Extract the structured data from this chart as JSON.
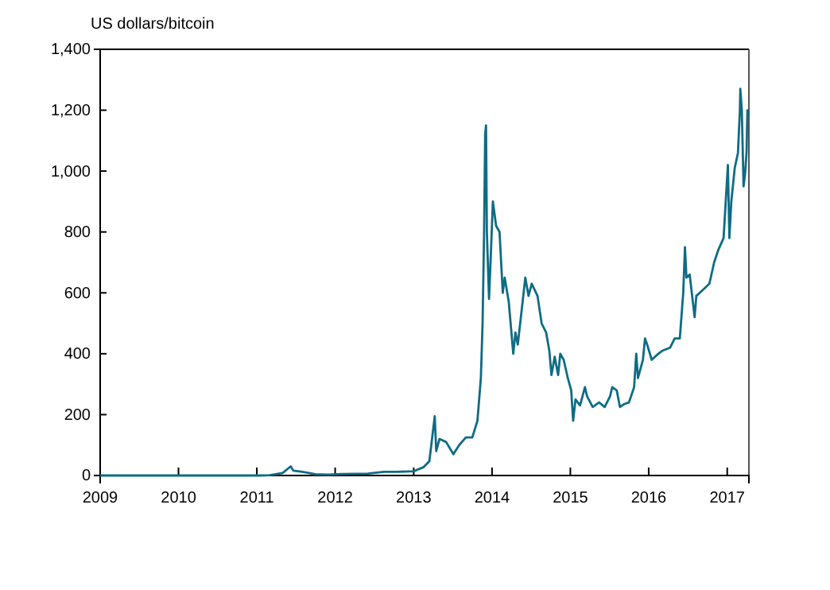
{
  "chart_data": {
    "type": "line",
    "ylabel": "US dollars/bitcoin",
    "xlim": [
      "2009-01-01",
      "2017-04-12"
    ],
    "xticks": [
      "2009",
      "2010",
      "2011",
      "2012",
      "2013",
      "2014",
      "2015",
      "2016",
      "2017"
    ],
    "ylim": [
      0,
      1400
    ],
    "yticks": [
      0,
      {
        "value": 200,
        "label": "200"
      },
      {
        "value": 400,
        "label": "400"
      },
      {
        "value": 600,
        "label": "600"
      },
      {
        "value": 800,
        "label": "800"
      },
      {
        "value": 1000,
        "label": "1,000"
      },
      {
        "value": 1200,
        "label": "1,200"
      },
      {
        "value": 1400,
        "label": "1,400"
      }
    ],
    "grid": false,
    "marker": "none",
    "line_style": "solid",
    "series": [
      {
        "color": "#0e6c85",
        "x": [
          "2009-01-01",
          "2010-07-15",
          "2010-10-01",
          "2011-01-15",
          "2011-03-01",
          "2011-05-01",
          "2011-06-08",
          "2011-06-20",
          "2011-08-01",
          "2011-10-01",
          "2011-12-01",
          "2012-02-01",
          "2012-06-01",
          "2012-08-15",
          "2012-10-15",
          "2013-01-01",
          "2013-02-15",
          "2013-03-15",
          "2013-04-09",
          "2013-04-16",
          "2013-05-01",
          "2013-06-01",
          "2013-07-05",
          "2013-08-01",
          "2013-09-01",
          "2013-10-01",
          "2013-10-25",
          "2013-11-10",
          "2013-11-18",
          "2013-11-25",
          "2013-11-30",
          "2013-12-04",
          "2013-12-08",
          "2013-12-18",
          "2013-12-25",
          "2014-01-05",
          "2014-01-20",
          "2014-02-05",
          "2014-02-20",
          "2014-03-01",
          "2014-03-20",
          "2014-04-10",
          "2014-04-20",
          "2014-05-01",
          "2014-05-25",
          "2014-06-05",
          "2014-06-20",
          "2014-07-05",
          "2014-08-01",
          "2014-08-20",
          "2014-09-10",
          "2014-09-25",
          "2014-10-05",
          "2014-10-20",
          "2014-11-05",
          "2014-11-15",
          "2014-12-01",
          "2014-12-20",
          "2015-01-05",
          "2015-01-14",
          "2015-01-25",
          "2015-02-15",
          "2015-03-10",
          "2015-03-20",
          "2015-04-15",
          "2015-05-15",
          "2015-06-10",
          "2015-07-05",
          "2015-07-15",
          "2015-08-05",
          "2015-08-20",
          "2015-09-10",
          "2015-10-01",
          "2015-10-25",
          "2015-11-04",
          "2015-11-12",
          "2015-12-05",
          "2015-12-15",
          "2015-12-25",
          "2016-01-15",
          "2016-02-15",
          "2016-03-05",
          "2016-04-10",
          "2016-05-01",
          "2016-05-25",
          "2016-06-10",
          "2016-06-18",
          "2016-06-25",
          "2016-07-10",
          "2016-08-02",
          "2016-08-10",
          "2016-09-10",
          "2016-10-10",
          "2016-11-01",
          "2016-11-20",
          "2016-12-15",
          "2016-12-25",
          "2017-01-04",
          "2017-01-11",
          "2017-01-20",
          "2017-02-05",
          "2017-02-20",
          "2017-03-01",
          "2017-03-03",
          "2017-03-10",
          "2017-03-18",
          "2017-03-25",
          "2017-04-01",
          "2017-04-05",
          "2017-04-10"
        ],
        "values": [
          0,
          0,
          0,
          0,
          1,
          8,
          30,
          16,
          12,
          4,
          3,
          5,
          6,
          12,
          12,
          14,
          27,
          47,
          195,
          80,
          120,
          110,
          70,
          100,
          125,
          125,
          180,
          320,
          500,
          800,
          1120,
          1150,
          800,
          580,
          700,
          900,
          820,
          800,
          600,
          650,
          570,
          400,
          470,
          430,
          580,
          650,
          590,
          630,
          590,
          500,
          470,
          410,
          330,
          390,
          330,
          400,
          380,
          320,
          280,
          180,
          250,
          230,
          290,
          260,
          225,
          240,
          225,
          260,
          290,
          280,
          225,
          235,
          240,
          290,
          400,
          320,
          380,
          450,
          430,
          380,
          400,
          410,
          420,
          450,
          450,
          600,
          750,
          650,
          660,
          520,
          590,
          610,
          630,
          700,
          740,
          780,
          900,
          1020,
          780,
          900,
          1010,
          1060,
          1200,
          1270,
          1200,
          950,
          990,
          1060,
          1200,
          1180
        ]
      }
    ]
  }
}
